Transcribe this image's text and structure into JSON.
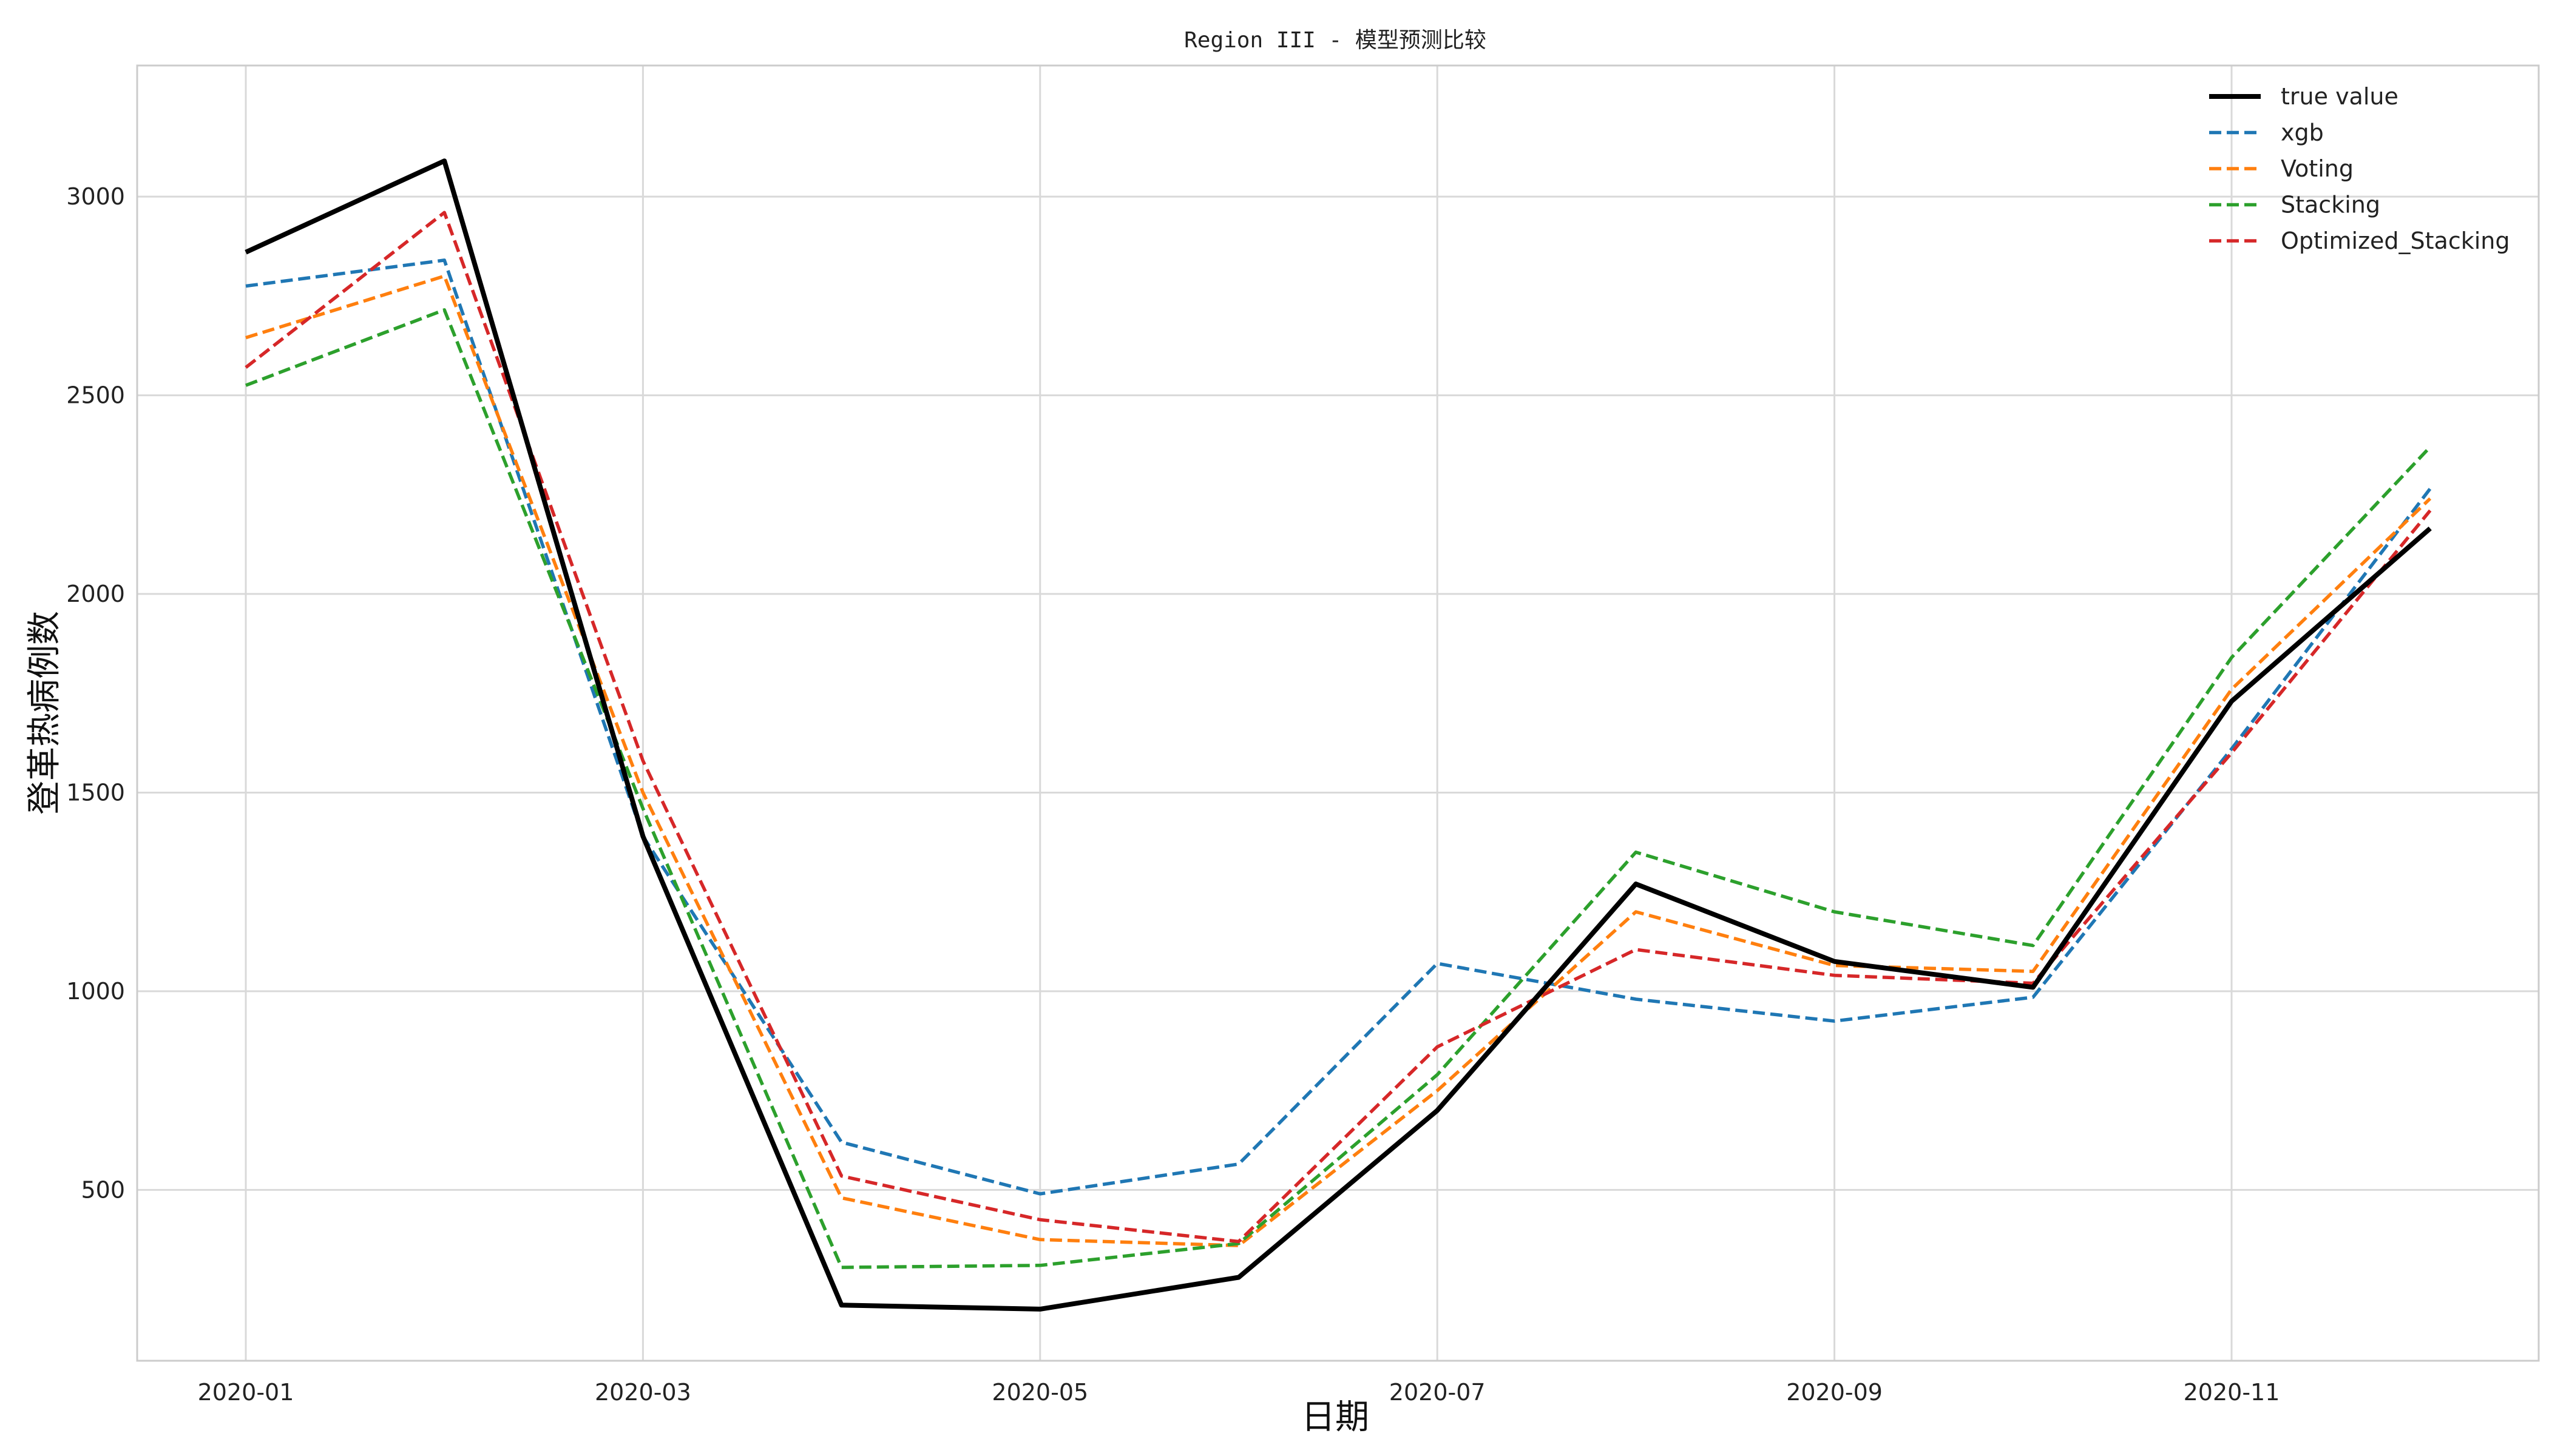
{
  "chart_data": {
    "type": "line",
    "title": "Region III - 模型预测比较",
    "xlabel": "日期",
    "ylabel": "登革热病例数",
    "x": [
      "2020-01",
      "2020-02",
      "2020-03",
      "2020-04",
      "2020-05",
      "2020-06",
      "2020-07",
      "2020-08",
      "2020-09",
      "2020-10",
      "2020-11",
      "2020-12"
    ],
    "x_tick_labels": [
      "2020-01",
      "2020-03",
      "2020-05",
      "2020-07",
      "2020-09",
      "2020-11"
    ],
    "y_tick_labels": [
      "500",
      "1000",
      "1500",
      "2000",
      "2500",
      "3000"
    ],
    "y_ticks": [
      500,
      1000,
      1500,
      2000,
      2500,
      3000
    ],
    "ylim": [
      70,
      3330
    ],
    "grid": true,
    "legend_position": "top-right",
    "series": [
      {
        "name": "true value",
        "style": "solid",
        "color": "#000000",
        "values": [
          2860,
          3090,
          1390,
          210,
          200,
          280,
          700,
          1270,
          1075,
          1010,
          1730,
          2165
        ]
      },
      {
        "name": "xgb",
        "style": "dashed",
        "color": "#1f77b4",
        "values": [
          2775,
          2840,
          1390,
          620,
          490,
          565,
          1070,
          980,
          925,
          985,
          1610,
          2265
        ]
      },
      {
        "name": "Voting",
        "style": "dashed",
        "color": "#ff7f0e",
        "values": [
          2645,
          2800,
          1500,
          480,
          375,
          360,
          750,
          1200,
          1065,
          1050,
          1760,
          2240
        ]
      },
      {
        "name": "Stacking",
        "style": "dashed",
        "color": "#2ca02c",
        "values": [
          2525,
          2715,
          1460,
          305,
          310,
          365,
          790,
          1350,
          1200,
          1115,
          1840,
          2370
        ]
      },
      {
        "name": "Optimized_Stacking",
        "style": "dashed",
        "color": "#d62728",
        "values": [
          2570,
          2960,
          1580,
          535,
          425,
          370,
          860,
          1105,
          1040,
          1020,
          1600,
          2210
        ]
      }
    ]
  }
}
